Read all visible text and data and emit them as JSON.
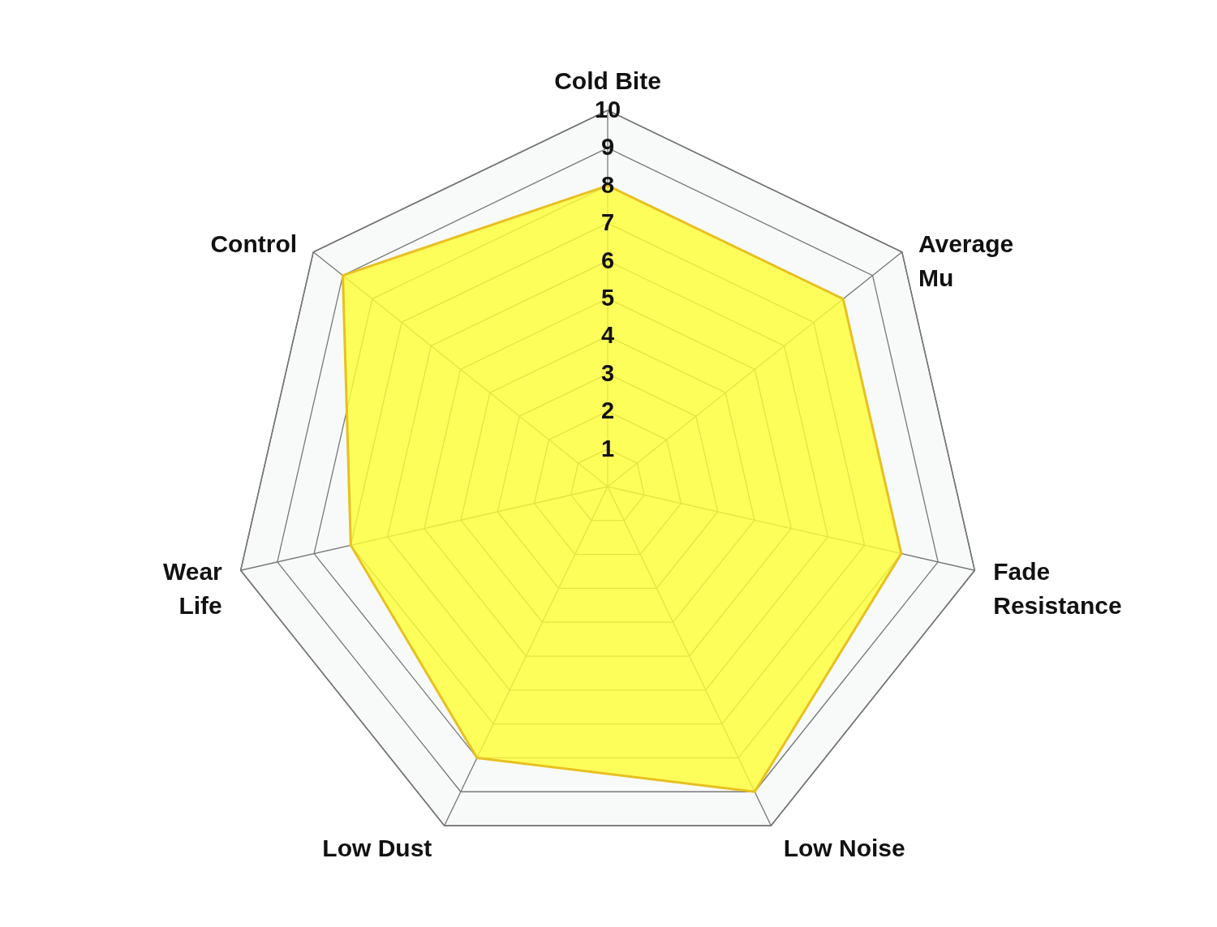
{
  "chart_data": {
    "type": "radar",
    "categories": [
      "Cold Bite",
      "Average\nMu",
      "Fade\nResistance",
      "Low Noise",
      "Low Dust",
      "Wear\nLife",
      "Control"
    ],
    "series": [
      {
        "color": "#ffff33",
        "values": [
          8,
          8,
          8,
          9,
          8,
          7,
          9
        ]
      }
    ],
    "ylim": [
      0,
      10
    ],
    "yticks": [
      1,
      2,
      3,
      4,
      5,
      6,
      7,
      8,
      9,
      10
    ],
    "grid": true
  }
}
